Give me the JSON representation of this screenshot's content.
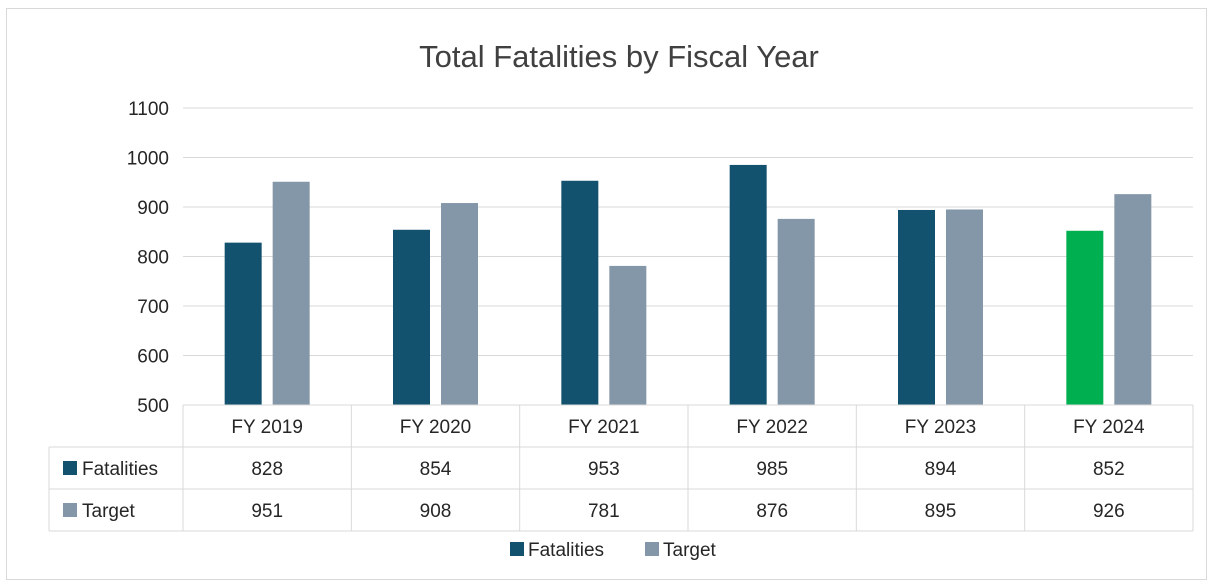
{
  "chart_data": {
    "type": "bar",
    "title": "Total Fatalities by Fiscal Year",
    "categories": [
      "FY 2019",
      "FY 2020",
      "FY 2021",
      "FY 2022",
      "FY 2023",
      "FY 2024"
    ],
    "series": [
      {
        "name": "Fatalities",
        "values": [
          828,
          854,
          953,
          985,
          894,
          852
        ],
        "color": "#12526e",
        "highlight": {
          "index": 5,
          "color": "#00b050"
        }
      },
      {
        "name": "Target",
        "values": [
          951,
          908,
          781,
          876,
          895,
          926
        ],
        "color": "#8497a9"
      }
    ],
    "ylim": [
      500,
      1100
    ],
    "yticks": [
      "1100",
      "1000",
      "900",
      "800",
      "700",
      "600",
      "500"
    ],
    "grid": true,
    "data_table": true,
    "legend": "bottom"
  }
}
